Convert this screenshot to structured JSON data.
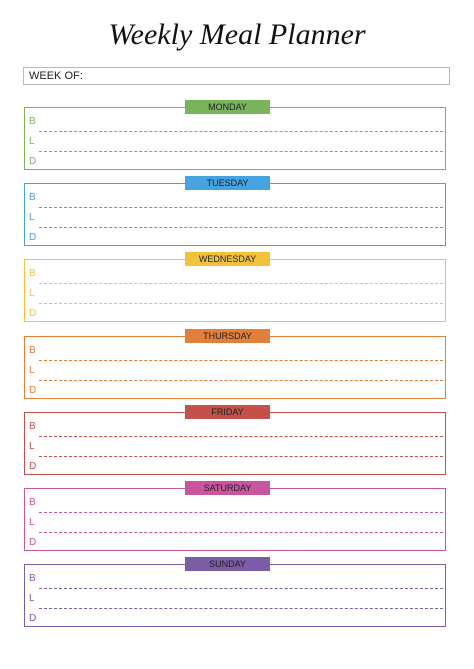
{
  "header": {
    "title": "Weekly Meal Planner",
    "week_label": "WEEK OF:"
  },
  "days": [
    {
      "name": "MONDAY",
      "color": "#79b45a",
      "meals": [
        "B",
        "L",
        "D"
      ]
    },
    {
      "name": "TUESDAY",
      "color": "#45a3e0",
      "meals": [
        "B",
        "L",
        "D"
      ]
    },
    {
      "name": "WEDNESDAY",
      "color": "#f3c13a",
      "meals": [
        "B",
        "L",
        "D"
      ]
    },
    {
      "name": "THURSDAY",
      "color": "#e27f3b",
      "meals": [
        "B",
        "L",
        "D"
      ]
    },
    {
      "name": "FRIDAY",
      "color": "#c4504a",
      "meals": [
        "B",
        "L",
        "D"
      ]
    },
    {
      "name": "SATURDAY",
      "color": "#c9559e",
      "meals": [
        "B",
        "L",
        "D"
      ]
    },
    {
      "name": "SUNDAY",
      "color": "#7d5ca6",
      "meals": [
        "B",
        "L",
        "D"
      ]
    }
  ]
}
